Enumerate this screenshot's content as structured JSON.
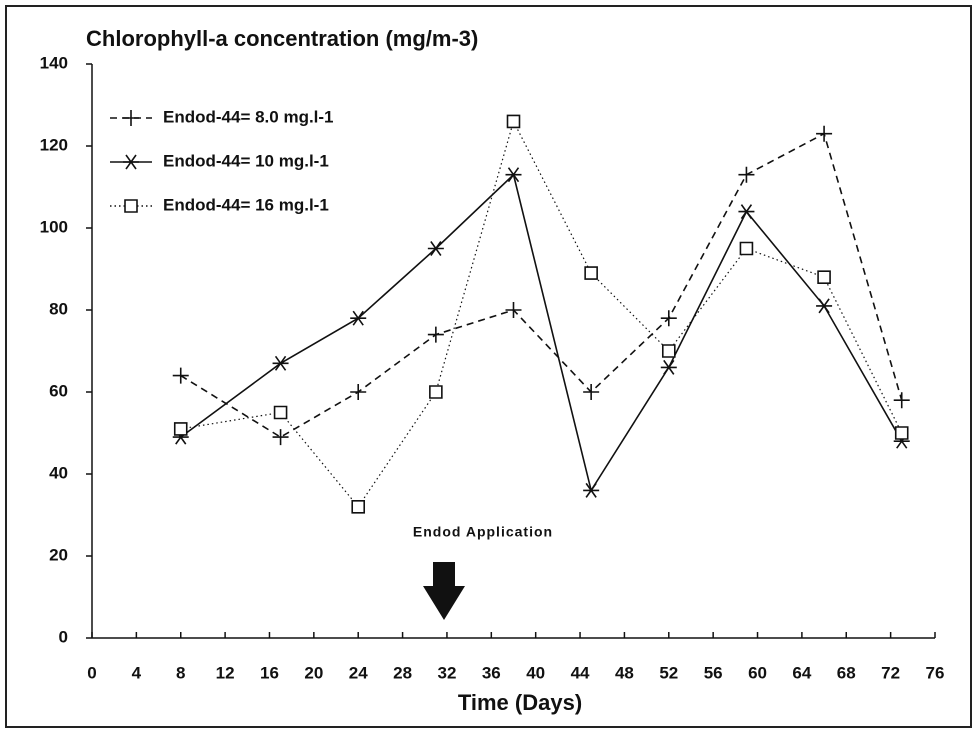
{
  "chart_data": {
    "type": "line",
    "title": "Chlorophyll-a concentration (mg/m-3)",
    "x_label": "Time (Days)",
    "annotation": "Endod Application",
    "x": [
      8,
      17,
      24,
      31,
      38,
      45,
      52,
      59,
      66,
      73
    ],
    "series": [
      {
        "name": "Endod-44= 8.0 mg.l-1",
        "color": "#111111",
        "line_style": "dashed",
        "marker": "plus",
        "values": [
          64,
          49,
          60,
          74,
          80,
          60,
          78,
          113,
          123,
          58
        ]
      },
      {
        "name": "Endod-44= 10 mg.l-1",
        "color": "#111111",
        "line_style": "solid",
        "marker": "asterisk",
        "values": [
          49,
          67,
          78,
          95,
          113,
          36,
          66,
          104,
          81,
          48
        ]
      },
      {
        "name": "Endod-44= 16 mg.l-1",
        "color": "#111111",
        "line_style": "dotted",
        "marker": "square",
        "values": [
          51,
          55,
          32,
          60,
          126,
          89,
          70,
          95,
          88,
          50
        ]
      }
    ],
    "xlim": [
      0,
      76
    ],
    "xticks": [
      0,
      4,
      8,
      12,
      16,
      20,
      24,
      28,
      32,
      36,
      40,
      44,
      48,
      52,
      56,
      60,
      64,
      68,
      72,
      76
    ],
    "ylim": [
      0,
      140
    ],
    "yticks": [
      0,
      20,
      40,
      60,
      80,
      100,
      120,
      140
    ],
    "grid": false,
    "legend": "upper left"
  }
}
